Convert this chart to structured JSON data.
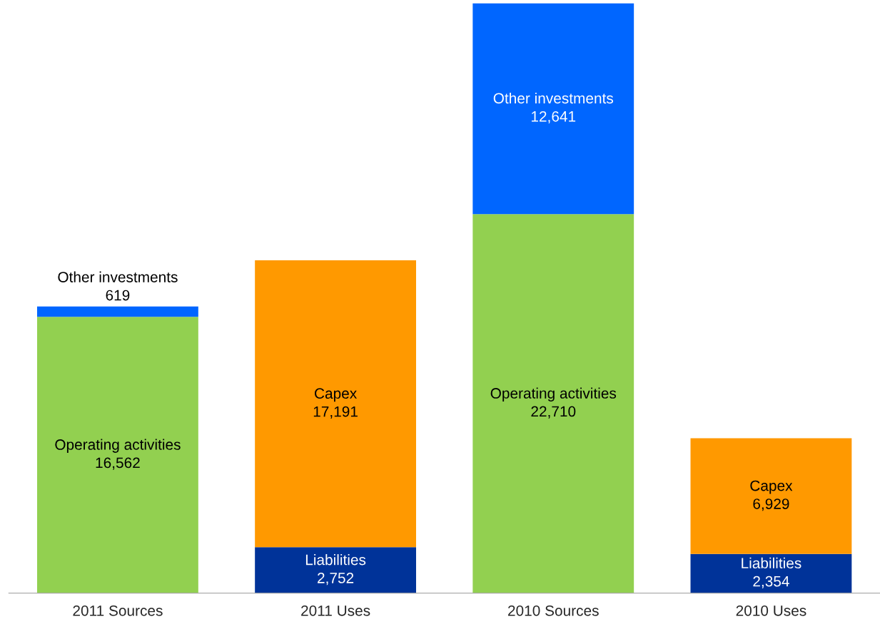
{
  "chart_data": {
    "type": "bar",
    "stacked": true,
    "legend": false,
    "grid": false,
    "data_labels": true,
    "categories": [
      "2011 Sources",
      "2011 Uses",
      "2010 Sources",
      "2010 Uses"
    ],
    "series": [
      {
        "name": "Liabilities",
        "color": "#003399",
        "values": [
          null,
          2752,
          null,
          2354
        ],
        "value_labels": [
          null,
          "2,752",
          null,
          "2,354"
        ]
      },
      {
        "name": "Operating activities",
        "color": "#92d050",
        "values": [
          16562,
          null,
          22710,
          null
        ],
        "value_labels": [
          "16,562",
          null,
          "22,710",
          null
        ]
      },
      {
        "name": "Capex",
        "color": "#ff9900",
        "values": [
          null,
          17191,
          null,
          6929
        ],
        "value_labels": [
          null,
          "17,191",
          null,
          "6,929"
        ]
      },
      {
        "name": "Other investments",
        "color": "#0066ff",
        "values": [
          619,
          null,
          12641,
          null
        ],
        "value_labels": [
          "619",
          null,
          "12,641",
          null
        ]
      }
    ]
  }
}
